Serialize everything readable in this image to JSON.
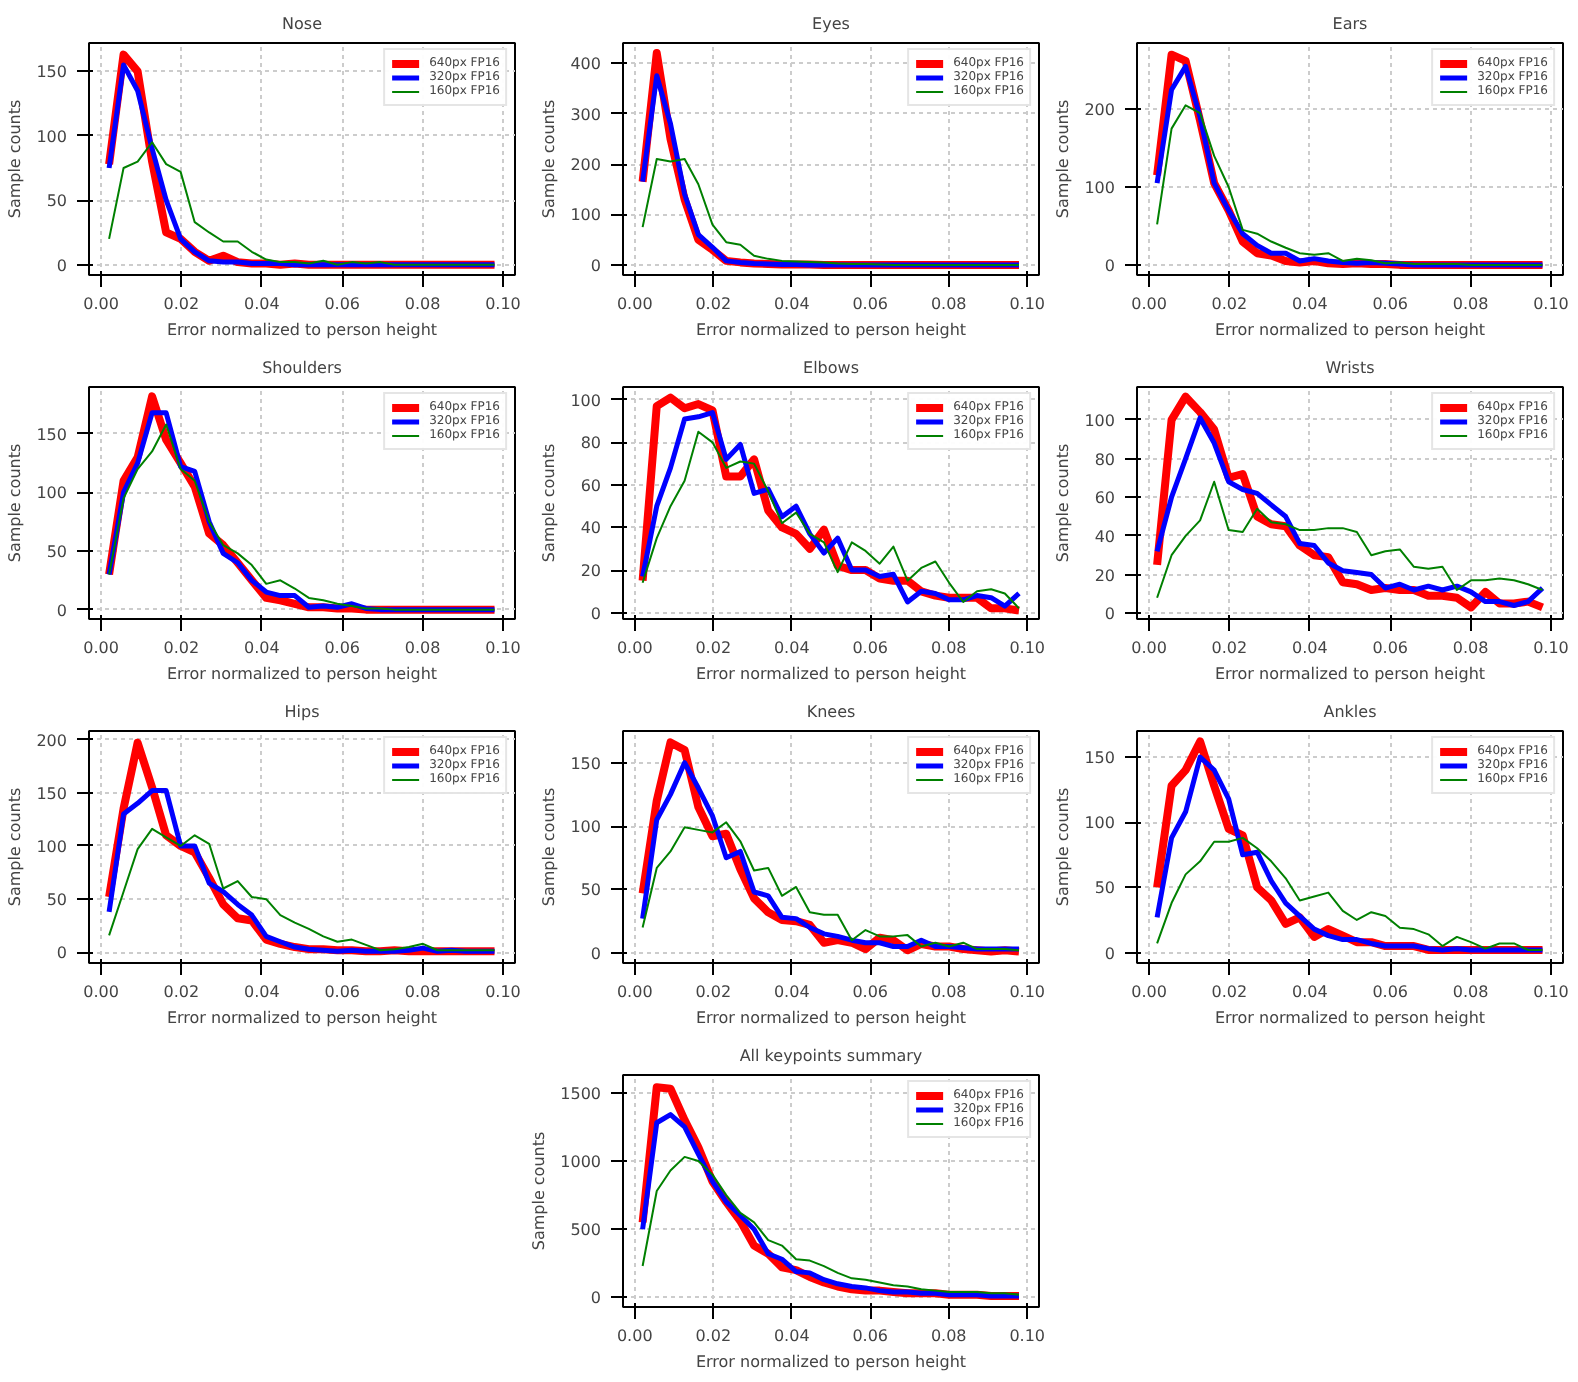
{
  "chart_data": [
    {
      "type": "line",
      "title": "Nose",
      "xlabel": "Error normalized to person height",
      "ylabel": "Sample counts",
      "grid": true,
      "legend": "top right",
      "xlim": [
        -0.003,
        0.103
      ],
      "ylim": [
        -8,
        172
      ],
      "yticks": [
        0,
        50,
        100,
        150
      ],
      "xticks": [
        {
          "value": 0,
          "label": "0.00"
        },
        {
          "value": 0.02,
          "label": "0.02"
        },
        {
          "value": 0.04,
          "label": "0.04"
        },
        {
          "value": 0.06,
          "label": "0.06"
        },
        {
          "value": 0.08,
          "label": "0.08"
        },
        {
          "value": 0.1,
          "label": "0.10"
        }
      ],
      "x": [
        0.002,
        0.0056,
        0.0091,
        0.0127,
        0.0162,
        0.0198,
        0.0233,
        0.0269,
        0.0304,
        0.034,
        0.0375,
        0.0411,
        0.0446,
        0.0482,
        0.0517,
        0.0553,
        0.0588,
        0.0624,
        0.0659,
        0.0695,
        0.073,
        0.0766,
        0.0801,
        0.0837,
        0.0872,
        0.0908,
        0.0943,
        0.0979
      ],
      "series": [
        {
          "name": "640px FP16",
          "color": "#ff0000",
          "values": [
            78,
            163,
            150,
            80,
            25,
            20,
            10,
            3,
            7,
            2,
            1,
            1,
            0,
            1,
            0,
            0,
            0,
            0,
            0,
            0,
            0,
            0,
            0,
            0,
            0,
            0,
            0,
            0
          ]
        },
        {
          "name": "320px FP16",
          "color": "#0000ff",
          "values": [
            75,
            155,
            135,
            90,
            50,
            20,
            10,
            3,
            2,
            2,
            1,
            1,
            1,
            0,
            0,
            0,
            0,
            0,
            0,
            0,
            0,
            0,
            0,
            0,
            0,
            0,
            0,
            0
          ]
        },
        {
          "name": "160px FP16",
          "color": "#008000",
          "values": [
            20,
            75,
            80,
            95,
            78,
            72,
            33,
            25,
            18,
            18,
            10,
            4,
            2,
            2,
            1,
            3,
            0,
            2,
            1,
            2,
            0,
            0,
            0,
            0,
            0,
            0,
            0,
            0
          ]
        }
      ]
    },
    {
      "type": "line",
      "title": "Eyes",
      "xlabel": "Error normalized to person height",
      "ylabel": "Sample counts",
      "grid": true,
      "legend": "top right",
      "xlim": [
        -0.003,
        0.103
      ],
      "ylim": [
        -20,
        440
      ],
      "yticks": [
        0,
        100,
        200,
        300,
        400
      ],
      "xticks": [
        {
          "value": 0,
          "label": "0.00"
        },
        {
          "value": 0.02,
          "label": "0.02"
        },
        {
          "value": 0.04,
          "label": "0.04"
        },
        {
          "value": 0.06,
          "label": "0.06"
        },
        {
          "value": 0.08,
          "label": "0.08"
        },
        {
          "value": 0.1,
          "label": "0.10"
        }
      ],
      "x": [
        0.002,
        0.0056,
        0.0091,
        0.0127,
        0.0162,
        0.0198,
        0.0233,
        0.0269,
        0.0304,
        0.034,
        0.0375,
        0.0411,
        0.0446,
        0.0482,
        0.0517,
        0.0553,
        0.0588,
        0.0624,
        0.0659,
        0.0695,
        0.073,
        0.0766,
        0.0801,
        0.0837,
        0.0872,
        0.0908,
        0.0943,
        0.0979
      ],
      "series": [
        {
          "name": "640px FP16",
          "color": "#ff0000",
          "values": [
            165,
            420,
            250,
            130,
            50,
            30,
            8,
            5,
            3,
            2,
            1,
            1,
            1,
            0,
            0,
            0,
            0,
            0,
            0,
            0,
            0,
            0,
            0,
            0,
            0,
            0,
            0,
            0
          ]
        },
        {
          "name": "320px FP16",
          "color": "#0000ff",
          "values": [
            165,
            375,
            280,
            140,
            60,
            35,
            8,
            5,
            3,
            2,
            1,
            1,
            0,
            0,
            0,
            0,
            0,
            0,
            0,
            0,
            0,
            0,
            0,
            0,
            0,
            0,
            0,
            0
          ]
        },
        {
          "name": "160px FP16",
          "color": "#008000",
          "values": [
            75,
            210,
            205,
            210,
            160,
            80,
            45,
            40,
            18,
            12,
            8,
            7,
            6,
            5,
            3,
            2,
            2,
            1,
            0,
            0,
            0,
            0,
            0,
            0,
            0,
            0,
            0,
            0
          ]
        }
      ]
    },
    {
      "type": "line",
      "title": "Ears",
      "xlabel": "Error normalized to person height",
      "ylabel": "Sample counts",
      "grid": true,
      "legend": "top right",
      "xlim": [
        -0.003,
        0.103
      ],
      "ylim": [
        -13,
        285
      ],
      "yticks": [
        0,
        100,
        200
      ],
      "xticks": [
        {
          "value": 0,
          "label": "0.00"
        },
        {
          "value": 0.02,
          "label": "0.02"
        },
        {
          "value": 0.04,
          "label": "0.04"
        },
        {
          "value": 0.06,
          "label": "0.06"
        },
        {
          "value": 0.08,
          "label": "0.08"
        },
        {
          "value": 0.1,
          "label": "0.10"
        }
      ],
      "x": [
        0.002,
        0.0056,
        0.0091,
        0.0127,
        0.0162,
        0.0198,
        0.0233,
        0.0269,
        0.0304,
        0.034,
        0.0375,
        0.0411,
        0.0446,
        0.0482,
        0.0517,
        0.0553,
        0.0588,
        0.0624,
        0.0659,
        0.0695,
        0.073,
        0.0766,
        0.0801,
        0.0837,
        0.0872,
        0.0908,
        0.0943,
        0.0979
      ],
      "series": [
        {
          "name": "640px FP16",
          "color": "#ff0000",
          "values": [
            115,
            270,
            262,
            185,
            105,
            70,
            30,
            15,
            12,
            5,
            3,
            5,
            2,
            1,
            2,
            1,
            1,
            0,
            0,
            0,
            0,
            0,
            0,
            0,
            0,
            0,
            0,
            0
          ]
        },
        {
          "name": "320px FP16",
          "color": "#0000ff",
          "values": [
            105,
            225,
            255,
            190,
            105,
            70,
            40,
            25,
            15,
            15,
            5,
            8,
            5,
            3,
            2,
            3,
            2,
            1,
            0,
            0,
            0,
            0,
            0,
            0,
            0,
            0,
            0,
            0
          ]
        },
        {
          "name": "160px FP16",
          "color": "#008000",
          "values": [
            52,
            175,
            205,
            195,
            140,
            100,
            45,
            40,
            30,
            22,
            15,
            13,
            15,
            5,
            8,
            6,
            2,
            3,
            1,
            1,
            1,
            1,
            0,
            0,
            0,
            0,
            0,
            0
          ]
        }
      ]
    },
    {
      "type": "line",
      "title": "Shoulders",
      "xlabel": "Error normalized to person height",
      "ylabel": "Sample counts",
      "grid": true,
      "legend": "top right",
      "xlim": [
        -0.003,
        0.103
      ],
      "ylim": [
        -8,
        190
      ],
      "yticks": [
        0,
        50,
        100,
        150
      ],
      "xticks": [
        {
          "value": 0,
          "label": "0.00"
        },
        {
          "value": 0.02,
          "label": "0.02"
        },
        {
          "value": 0.04,
          "label": "0.04"
        },
        {
          "value": 0.06,
          "label": "0.06"
        },
        {
          "value": 0.08,
          "label": "0.08"
        },
        {
          "value": 0.1,
          "label": "0.10"
        }
      ],
      "x": [
        0.002,
        0.0056,
        0.0091,
        0.0127,
        0.0162,
        0.0198,
        0.0233,
        0.0269,
        0.0304,
        0.034,
        0.0375,
        0.0411,
        0.0446,
        0.0482,
        0.0517,
        0.0553,
        0.0588,
        0.0624,
        0.0659,
        0.0695,
        0.073,
        0.0766,
        0.0801,
        0.0837,
        0.0872,
        0.0908,
        0.0943,
        0.0979
      ],
      "series": [
        {
          "name": "640px FP16",
          "color": "#ff0000",
          "values": [
            30,
            110,
            130,
            182,
            145,
            125,
            105,
            65,
            55,
            40,
            25,
            10,
            8,
            5,
            2,
            2,
            1,
            1,
            0,
            0,
            0,
            0,
            0,
            0,
            0,
            0,
            0,
            0
          ]
        },
        {
          "name": "320px FP16",
          "color": "#0000ff",
          "values": [
            30,
            100,
            125,
            168,
            168,
            122,
            118,
            75,
            48,
            40,
            25,
            15,
            12,
            12,
            2,
            3,
            2,
            5,
            1,
            0,
            0,
            0,
            0,
            0,
            0,
            0,
            0,
            0
          ]
        },
        {
          "name": "160px FP16",
          "color": "#008000",
          "values": [
            30,
            95,
            120,
            135,
            158,
            120,
            110,
            75,
            55,
            48,
            38,
            22,
            25,
            18,
            10,
            8,
            5,
            3,
            1,
            1,
            0,
            0,
            0,
            0,
            0,
            0,
            0,
            0
          ]
        }
      ]
    },
    {
      "type": "line",
      "title": "Elbows",
      "xlabel": "Error normalized to person height",
      "ylabel": "Sample counts",
      "grid": true,
      "legend": "top right",
      "xlim": [
        -0.003,
        0.103
      ],
      "ylim": [
        -3,
        106
      ],
      "yticks": [
        0,
        20,
        40,
        60,
        80,
        100
      ],
      "xticks": [
        {
          "value": 0,
          "label": "0.00"
        },
        {
          "value": 0.02,
          "label": "0.02"
        },
        {
          "value": 0.04,
          "label": "0.04"
        },
        {
          "value": 0.06,
          "label": "0.06"
        },
        {
          "value": 0.08,
          "label": "0.08"
        },
        {
          "value": 0.1,
          "label": "0.10"
        }
      ],
      "x": [
        0.002,
        0.0056,
        0.0091,
        0.0127,
        0.0162,
        0.0198,
        0.0233,
        0.0269,
        0.0304,
        0.034,
        0.0375,
        0.0411,
        0.0446,
        0.0482,
        0.0517,
        0.0553,
        0.0588,
        0.0624,
        0.0659,
        0.0695,
        0.073,
        0.0766,
        0.0801,
        0.0837,
        0.0872,
        0.0908,
        0.0943,
        0.0979
      ],
      "series": [
        {
          "name": "640px FP16",
          "color": "#ff0000",
          "values": [
            15,
            97,
            101,
            96,
            98,
            95,
            64,
            64,
            72,
            48,
            40,
            37,
            30,
            39,
            22,
            20,
            20,
            16,
            15,
            15,
            10,
            8,
            7,
            7,
            7,
            2,
            2,
            1
          ]
        },
        {
          "name": "320px FP16",
          "color": "#0000ff",
          "values": [
            17,
            50,
            68,
            91,
            92,
            94,
            72,
            79,
            56,
            58,
            45,
            50,
            37,
            28,
            35,
            20,
            20,
            17,
            18,
            5,
            10,
            9,
            6,
            6,
            8,
            7,
            3,
            9
          ]
        },
        {
          "name": "160px FP16",
          "color": "#008000",
          "values": [
            14,
            35,
            50,
            62,
            85,
            80,
            68,
            71,
            70,
            57,
            42,
            47,
            37,
            33,
            19,
            33,
            29,
            23,
            31,
            15,
            21,
            24,
            14,
            5,
            10,
            11,
            9,
            2
          ]
        }
      ]
    },
    {
      "type": "line",
      "title": "Wrists",
      "xlabel": "Error normalized to person height",
      "ylabel": "Sample counts",
      "grid": true,
      "legend": "top right",
      "xlim": [
        -0.003,
        0.103
      ],
      "ylim": [
        -3,
        117
      ],
      "yticks": [
        0,
        20,
        40,
        60,
        80,
        100
      ],
      "xticks": [
        {
          "value": 0,
          "label": "0.00"
        },
        {
          "value": 0.02,
          "label": "0.02"
        },
        {
          "value": 0.04,
          "label": "0.04"
        },
        {
          "value": 0.06,
          "label": "0.06"
        },
        {
          "value": 0.08,
          "label": "0.08"
        },
        {
          "value": 0.1,
          "label": "0.10"
        }
      ],
      "x": [
        0.002,
        0.0056,
        0.0091,
        0.0127,
        0.0162,
        0.0198,
        0.0233,
        0.0269,
        0.0304,
        0.034,
        0.0375,
        0.0411,
        0.0446,
        0.0482,
        0.0517,
        0.0553,
        0.0588,
        0.0624,
        0.0659,
        0.0695,
        0.073,
        0.0766,
        0.0801,
        0.0837,
        0.0872,
        0.0908,
        0.0943,
        0.0979
      ],
      "series": [
        {
          "name": "640px FP16",
          "color": "#ff0000",
          "values": [
            25,
            100,
            112,
            104,
            95,
            70,
            72,
            50,
            46,
            45,
            35,
            30,
            29,
            16,
            15,
            12,
            13,
            12,
            12,
            9,
            9,
            8,
            3,
            11,
            5,
            5,
            6,
            3
          ]
        },
        {
          "name": "320px FP16",
          "color": "#0000ff",
          "values": [
            32,
            60,
            80,
            101,
            88,
            68,
            64,
            62,
            56,
            50,
            36,
            35,
            26,
            22,
            21,
            20,
            13,
            15,
            12,
            14,
            12,
            14,
            11,
            6,
            6,
            4,
            6,
            13
          ]
        },
        {
          "name": "160px FP16",
          "color": "#008000",
          "values": [
            8,
            30,
            40,
            48,
            68,
            43,
            42,
            54,
            47,
            46,
            43,
            43,
            44,
            44,
            42,
            30,
            32,
            33,
            24,
            23,
            24,
            12,
            17,
            17,
            18,
            17,
            15,
            12
          ]
        }
      ]
    },
    {
      "type": "line",
      "title": "Hips",
      "xlabel": "Error normalized to person height",
      "ylabel": "Sample counts",
      "grid": true,
      "legend": "top right",
      "xlim": [
        -0.003,
        0.103
      ],
      "ylim": [
        -10,
        208
      ],
      "yticks": [
        0,
        50,
        100,
        150,
        200
      ],
      "xticks": [
        {
          "value": 0,
          "label": "0.00"
        },
        {
          "value": 0.02,
          "label": "0.02"
        },
        {
          "value": 0.04,
          "label": "0.04"
        },
        {
          "value": 0.06,
          "label": "0.06"
        },
        {
          "value": 0.08,
          "label": "0.08"
        },
        {
          "value": 0.1,
          "label": "0.10"
        }
      ],
      "x": [
        0.002,
        0.0056,
        0.0091,
        0.0127,
        0.0162,
        0.0198,
        0.0233,
        0.0269,
        0.0304,
        0.034,
        0.0375,
        0.0411,
        0.0446,
        0.0482,
        0.0517,
        0.0553,
        0.0588,
        0.0624,
        0.0659,
        0.0695,
        0.073,
        0.0766,
        0.0801,
        0.0837,
        0.0872,
        0.0908,
        0.0943,
        0.0979
      ],
      "series": [
        {
          "name": "640px FP16",
          "color": "#ff0000",
          "values": [
            52,
            135,
            197,
            155,
            110,
            100,
            94,
            70,
            45,
            32,
            30,
            12,
            8,
            5,
            3,
            3,
            2,
            2,
            1,
            1,
            2,
            1,
            1,
            1,
            1,
            1,
            1,
            1
          ]
        },
        {
          "name": "320px FP16",
          "color": "#0000ff",
          "values": [
            38,
            130,
            140,
            152,
            152,
            100,
            100,
            65,
            57,
            45,
            35,
            15,
            10,
            5,
            3,
            2,
            1,
            2,
            1,
            1,
            1,
            2,
            4,
            1,
            2,
            1,
            1,
            1
          ]
        },
        {
          "name": "160px FP16",
          "color": "#008000",
          "values": [
            16,
            57,
            97,
            116,
            108,
            100,
            110,
            102,
            60,
            67,
            52,
            50,
            35,
            28,
            22,
            15,
            10,
            12,
            7,
            2,
            3,
            5,
            8,
            2,
            2,
            2,
            2,
            2
          ]
        }
      ]
    },
    {
      "type": "line",
      "title": "Knees",
      "xlabel": "Error normalized to person height",
      "ylabel": "Sample counts",
      "grid": true,
      "legend": "top right",
      "xlim": [
        -0.003,
        0.103
      ],
      "ylim": [
        -8,
        175
      ],
      "yticks": [
        0,
        50,
        100,
        150
      ],
      "xticks": [
        {
          "value": 0,
          "label": "0.00"
        },
        {
          "value": 0.02,
          "label": "0.02"
        },
        {
          "value": 0.04,
          "label": "0.04"
        },
        {
          "value": 0.06,
          "label": "0.06"
        },
        {
          "value": 0.08,
          "label": "0.08"
        },
        {
          "value": 0.1,
          "label": "0.10"
        }
      ],
      "x": [
        0.002,
        0.0056,
        0.0091,
        0.0127,
        0.0162,
        0.0198,
        0.0233,
        0.0269,
        0.0304,
        0.034,
        0.0375,
        0.0411,
        0.0446,
        0.0482,
        0.0517,
        0.0553,
        0.0588,
        0.0624,
        0.0659,
        0.0695,
        0.073,
        0.0766,
        0.0801,
        0.0837,
        0.0872,
        0.0908,
        0.0943,
        0.0979
      ],
      "series": [
        {
          "name": "640px FP16",
          "color": "#ff0000",
          "values": [
            47,
            120,
            166,
            160,
            115,
            92,
            94,
            66,
            43,
            32,
            26,
            25,
            22,
            8,
            10,
            8,
            3,
            12,
            10,
            2,
            7,
            5,
            5,
            3,
            2,
            1,
            2,
            1
          ]
        },
        {
          "name": "320px FP16",
          "color": "#0000ff",
          "values": [
            27,
            105,
            125,
            150,
            130,
            108,
            75,
            80,
            48,
            45,
            28,
            27,
            20,
            15,
            13,
            10,
            8,
            8,
            5,
            5,
            10,
            5,
            5,
            4,
            3,
            3,
            3,
            3
          ]
        },
        {
          "name": "160px FP16",
          "color": "#008000",
          "values": [
            20,
            67,
            80,
            99,
            97,
            95,
            103,
            88,
            65,
            67,
            45,
            52,
            32,
            30,
            30,
            10,
            18,
            13,
            13,
            14,
            5,
            8,
            5,
            8,
            3,
            3,
            3,
            2
          ]
        }
      ]
    },
    {
      "type": "line",
      "title": "Ankles",
      "xlabel": "Error normalized to person height",
      "ylabel": "Sample counts",
      "grid": true,
      "legend": "top right",
      "xlim": [
        -0.003,
        0.103
      ],
      "ylim": [
        -8,
        170
      ],
      "yticks": [
        0,
        50,
        100,
        150
      ],
      "xticks": [
        {
          "value": 0,
          "label": "0.00"
        },
        {
          "value": 0.02,
          "label": "0.02"
        },
        {
          "value": 0.04,
          "label": "0.04"
        },
        {
          "value": 0.06,
          "label": "0.06"
        },
        {
          "value": 0.08,
          "label": "0.08"
        },
        {
          "value": 0.1,
          "label": "0.10"
        }
      ],
      "x": [
        0.002,
        0.0056,
        0.0091,
        0.0127,
        0.0162,
        0.0198,
        0.0233,
        0.0269,
        0.0304,
        0.034,
        0.0375,
        0.0411,
        0.0446,
        0.0482,
        0.0517,
        0.0553,
        0.0588,
        0.0624,
        0.0659,
        0.0695,
        0.073,
        0.0766,
        0.0801,
        0.0837,
        0.0872,
        0.0908,
        0.0943,
        0.0979
      ],
      "series": [
        {
          "name": "640px FP16",
          "color": "#ff0000",
          "values": [
            50,
            128,
            140,
            162,
            128,
            95,
            90,
            50,
            40,
            22,
            27,
            12,
            18,
            13,
            8,
            8,
            5,
            5,
            5,
            2,
            2,
            2,
            2,
            2,
            2,
            2,
            2,
            2
          ]
        },
        {
          "name": "320px FP16",
          "color": "#0000ff",
          "values": [
            27,
            88,
            108,
            150,
            140,
            118,
            75,
            77,
            55,
            38,
            28,
            18,
            13,
            10,
            10,
            7,
            5,
            5,
            5,
            3,
            2,
            3,
            2,
            2,
            2,
            2,
            2,
            2
          ]
        },
        {
          "name": "160px FP16",
          "color": "#008000",
          "values": [
            7,
            38,
            60,
            70,
            85,
            85,
            88,
            80,
            70,
            57,
            40,
            43,
            46,
            32,
            25,
            31,
            28,
            19,
            18,
            14,
            5,
            12,
            8,
            3,
            7,
            7,
            2,
            2
          ]
        }
      ]
    },
    {
      "type": "line",
      "title": "All keypoints summary",
      "xlabel": "Error normalized to person height",
      "ylabel": "Sample counts",
      "grid": true,
      "legend": "top right",
      "xlim": [
        -0.003,
        0.103
      ],
      "ylim": [
        -70,
        1630
      ],
      "yticks": [
        0,
        500,
        1000,
        1500
      ],
      "xticks": [
        {
          "value": 0,
          "label": "0.00"
        },
        {
          "value": 0.02,
          "label": "0.02"
        },
        {
          "value": 0.04,
          "label": "0.04"
        },
        {
          "value": 0.06,
          "label": "0.06"
        },
        {
          "value": 0.08,
          "label": "0.08"
        },
        {
          "value": 0.1,
          "label": "0.10"
        }
      ],
      "x": [
        0.002,
        0.0056,
        0.0091,
        0.0127,
        0.0162,
        0.0198,
        0.0233,
        0.0269,
        0.0304,
        0.034,
        0.0375,
        0.0411,
        0.0446,
        0.0482,
        0.0517,
        0.0553,
        0.0588,
        0.0624,
        0.0659,
        0.0695,
        0.073,
        0.0766,
        0.0801,
        0.0837,
        0.0872,
        0.0908,
        0.0943,
        0.0979
      ],
      "series": [
        {
          "name": "640px FP16",
          "color": "#ff0000",
          "values": [
            550,
            1540,
            1530,
            1300,
            1100,
            850,
            700,
            560,
            380,
            320,
            220,
            200,
            150,
            110,
            80,
            60,
            50,
            50,
            40,
            30,
            30,
            30,
            20,
            20,
            20,
            10,
            10,
            10
          ]
        },
        {
          "name": "320px FP16",
          "color": "#0000ff",
          "values": [
            500,
            1280,
            1340,
            1250,
            1050,
            850,
            700,
            600,
            500,
            320,
            280,
            190,
            180,
            130,
            100,
            80,
            70,
            50,
            40,
            40,
            30,
            30,
            20,
            20,
            20,
            10,
            10,
            10
          ]
        },
        {
          "name": "160px FP16",
          "color": "#008000",
          "values": [
            230,
            780,
            930,
            1030,
            1000,
            900,
            750,
            620,
            550,
            420,
            380,
            280,
            270,
            230,
            180,
            140,
            130,
            110,
            90,
            80,
            60,
            50,
            40,
            40,
            40,
            30,
            30,
            20
          ]
        }
      ]
    }
  ]
}
